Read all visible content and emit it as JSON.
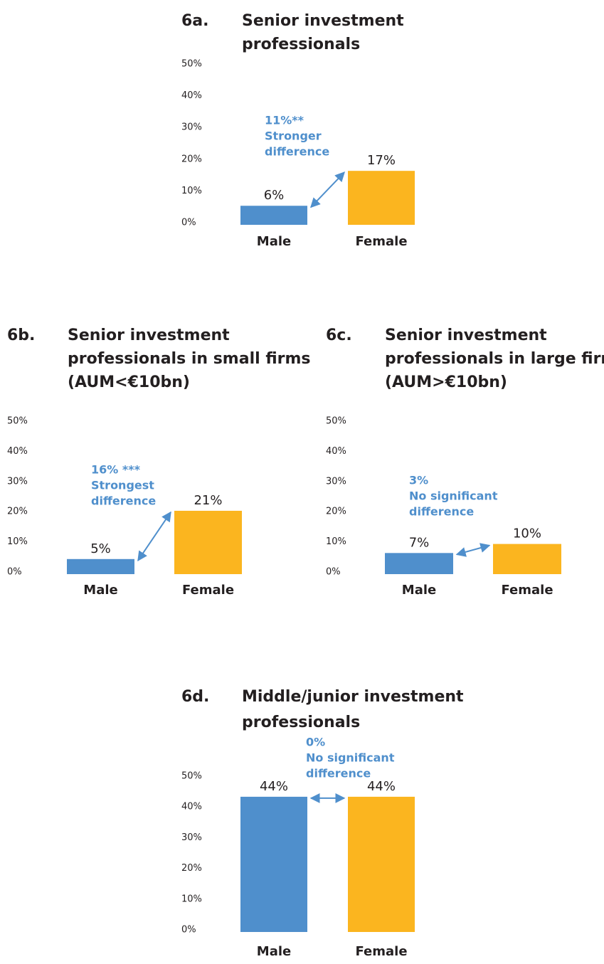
{
  "chart_data": [
    {
      "type": "bar",
      "label": "6a.",
      "title": [
        "Senior investment",
        "professionals"
      ],
      "categories": [
        "Male",
        "Female"
      ],
      "values": [
        6,
        17
      ],
      "value_labels": [
        "6%",
        "17%"
      ],
      "colors": [
        "#4f8fcc",
        "#fbb51f"
      ],
      "ylim": [
        0,
        50
      ],
      "yticks": [
        {
          "value": 0,
          "label": "0%"
        },
        {
          "value": 10,
          "label": "10%"
        },
        {
          "value": 20,
          "label": "20%"
        },
        {
          "value": 30,
          "label": "30%"
        },
        {
          "value": 40,
          "label": "40%"
        },
        {
          "value": 50,
          "label": "50%"
        }
      ],
      "annotation": [
        "11%**",
        "Stronger",
        "difference"
      ]
    },
    {
      "type": "bar",
      "label": "6b.",
      "title": [
        "Senior investment",
        "professionals in small firms",
        "(AUM<€10bn)"
      ],
      "categories": [
        "Male",
        "Female"
      ],
      "values": [
        5,
        21
      ],
      "value_labels": [
        "5%",
        "21%"
      ],
      "colors": [
        "#4f8fcc",
        "#fbb51f"
      ],
      "ylim": [
        0,
        50
      ],
      "yticks": [
        {
          "value": 0,
          "label": "0%"
        },
        {
          "value": 10,
          "label": "10%"
        },
        {
          "value": 20,
          "label": "20%"
        },
        {
          "value": 30,
          "label": "30%"
        },
        {
          "value": 40,
          "label": "40%"
        },
        {
          "value": 50,
          "label": "50%"
        }
      ],
      "annotation": [
        "16% ***",
        "Strongest",
        "difference"
      ]
    },
    {
      "type": "bar",
      "label": "6c.",
      "title": [
        "Senior investment",
        "professionals in large firms",
        "(AUM>€10bn)"
      ],
      "categories": [
        "Male",
        "Female"
      ],
      "values": [
        7,
        10
      ],
      "value_labels": [
        "7%",
        "10%"
      ],
      "colors": [
        "#4f8fcc",
        "#fbb51f"
      ],
      "ylim": [
        0,
        50
      ],
      "yticks": [
        {
          "value": 0,
          "label": "0%"
        },
        {
          "value": 10,
          "label": "10%"
        },
        {
          "value": 20,
          "label": "20%"
        },
        {
          "value": 30,
          "label": "30%"
        },
        {
          "value": 40,
          "label": "40%"
        },
        {
          "value": 50,
          "label": "50%"
        }
      ],
      "annotation": [
        "3%",
        "No significant",
        "difference"
      ]
    },
    {
      "type": "bar",
      "label": "6d.",
      "title": [
        "Middle/junior investment",
        "professionals"
      ],
      "categories": [
        "Male",
        "Female"
      ],
      "values": [
        44,
        44
      ],
      "value_labels": [
        "44%",
        "44%"
      ],
      "colors": [
        "#4f8fcc",
        "#fbb51f"
      ],
      "ylim": [
        0,
        50
      ],
      "yticks": [
        {
          "value": 0,
          "label": "0%"
        },
        {
          "value": 10,
          "label": "10%"
        },
        {
          "value": 20,
          "label": "20%"
        },
        {
          "value": 30,
          "label": "30%"
        },
        {
          "value": 40,
          "label": "40%"
        },
        {
          "value": 50,
          "label": "50%"
        }
      ],
      "annotation": [
        "0%",
        "No significant",
        "difference"
      ]
    }
  ]
}
